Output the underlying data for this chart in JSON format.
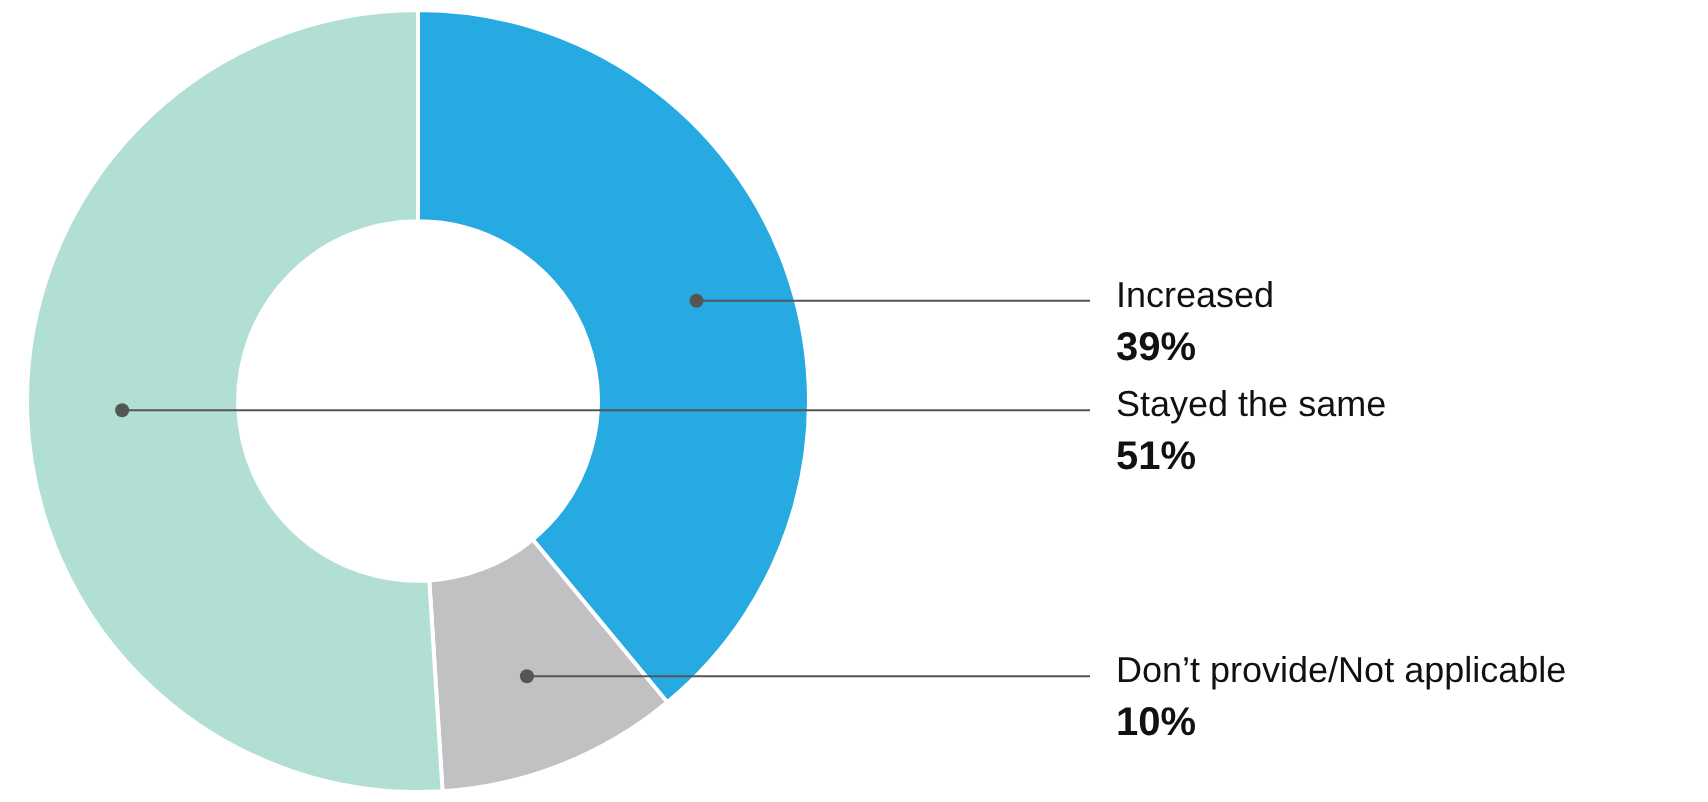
{
  "chart_data": {
    "type": "donut",
    "categories": [
      "Increased",
      "Don’t provide/Not applicable",
      "Stayed the same"
    ],
    "values": [
      39,
      10,
      51
    ],
    "colors": [
      "#27a9e1",
      "#c1c1c3",
      "#b1dfd4"
    ],
    "value_labels": [
      "39%",
      "10%",
      "51%"
    ],
    "legend": false
  }
}
